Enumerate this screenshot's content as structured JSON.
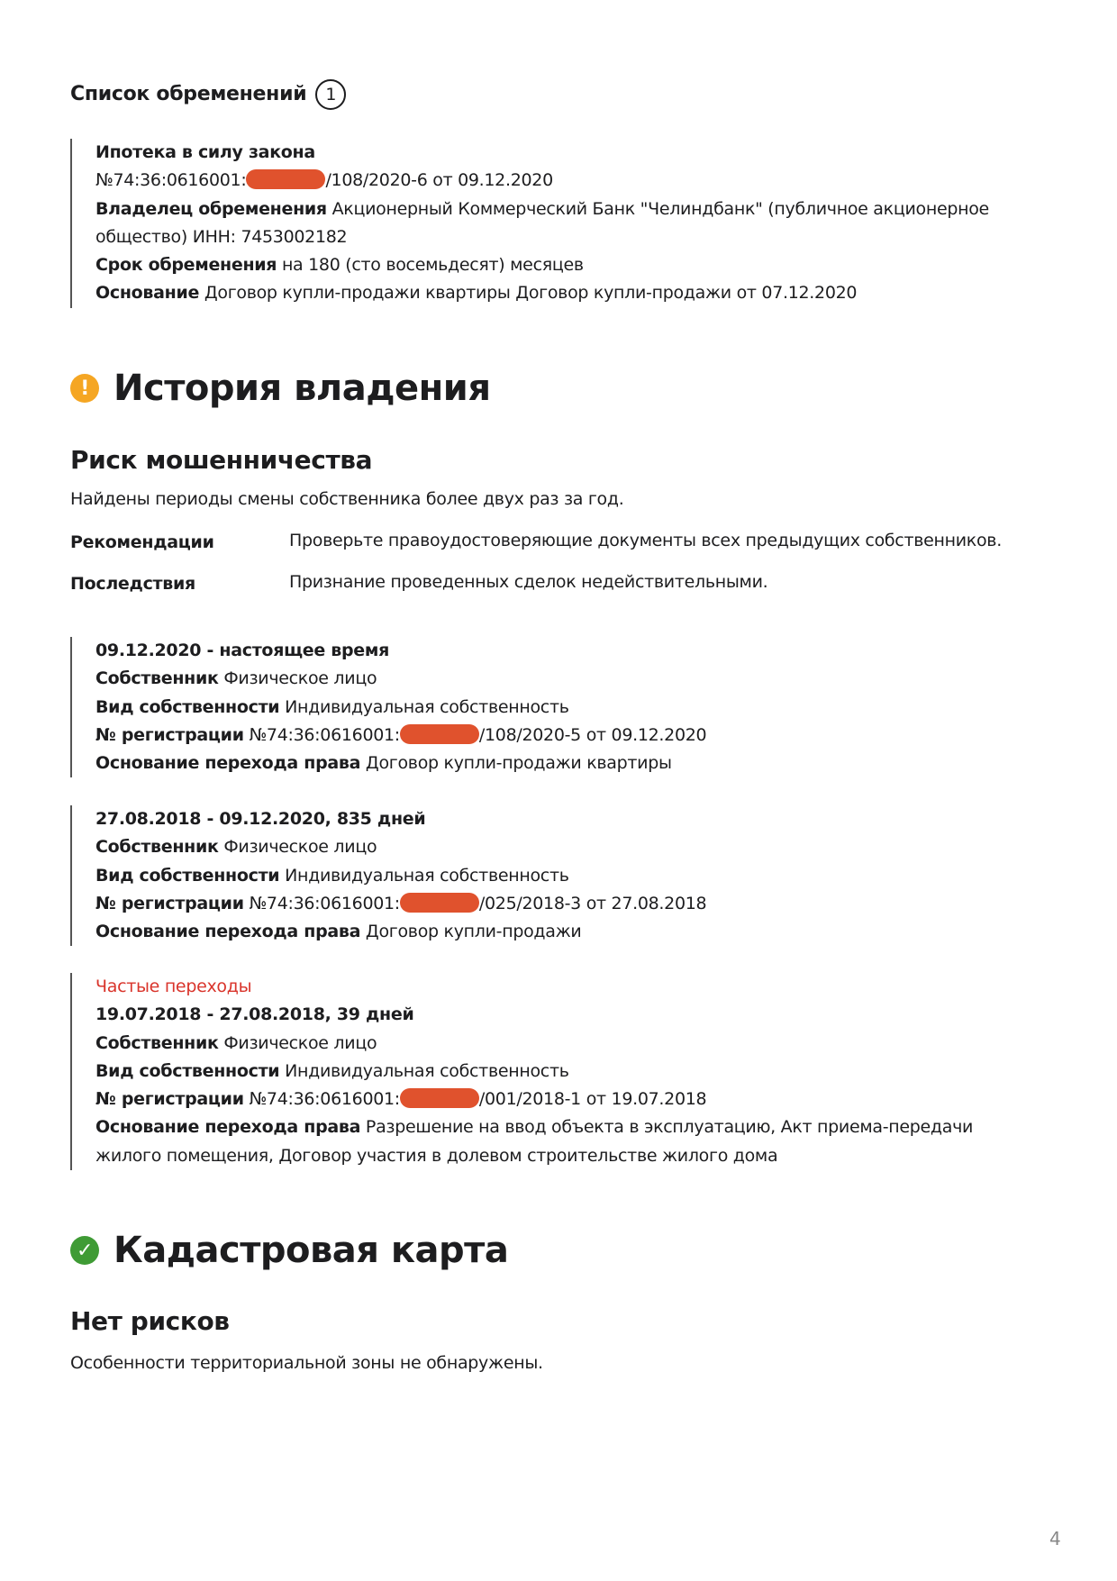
{
  "encumbrances": {
    "title": "Список обременений",
    "count": "1",
    "items": [
      {
        "type": "Ипотека в силу закона",
        "number_prefix": "№74:36:0616001:",
        "number_suffix": "/108/2020-6 от 09.12.2020",
        "owner_label": "Владелец обременения",
        "owner_value": "Акционерный Коммерческий Банк \"Челиндбанк\" (публичное акционерное общество) ИНН: 7453002182",
        "term_label": "Срок обременения",
        "term_value": "на 180 (сто восемьдесят) месяцев",
        "basis_label": "Основание",
        "basis_value": "Договор купли-продажи квартиры Договор купли-продажи от 07.12.2020"
      }
    ]
  },
  "history": {
    "title": "История владения",
    "status_icon": "warning-icon",
    "status_color": "#f5a623",
    "risk_title": "Риск мошенничества",
    "risk_text": "Найдены периоды смены собственника более двух раз за год.",
    "recommendations_label": "Рекомендации",
    "recommendations_value": "Проверьте правоудостоверяющие документы всех предыдущих собственников.",
    "consequences_label": "Последствия",
    "consequences_value": "Признание проведенных сделок недействительными.",
    "periods": [
      {
        "flag": "",
        "period": "09.12.2020 - настоящее время",
        "owner_label": "Собственник",
        "owner_value": "Физическое лицо",
        "kind_label": "Вид собственности",
        "kind_value": "Индивидуальная собственность",
        "reg_label": "№ регистрации",
        "reg_prefix": "№74:36:0616001:",
        "reg_suffix": "/108/2020-5 от 09.12.2020",
        "basis_label": "Основание перехода права",
        "basis_value": "Договор купли-продажи квартиры"
      },
      {
        "flag": "",
        "period": "27.08.2018 - 09.12.2020, 835 дней",
        "owner_label": "Собственник",
        "owner_value": "Физическое лицо",
        "kind_label": "Вид собственности",
        "kind_value": "Индивидуальная собственность",
        "reg_label": "№ регистрации",
        "reg_prefix": "№74:36:0616001:",
        "reg_suffix": "/025/2018-3 от 27.08.2018",
        "basis_label": "Основание перехода права",
        "basis_value": "Договор купли-продажи"
      },
      {
        "flag": "Частые переходы",
        "period": "19.07.2018 - 27.08.2018, 39 дней",
        "owner_label": "Собственник",
        "owner_value": "Физическое лицо",
        "kind_label": "Вид собственности",
        "kind_value": "Индивидуальная собственность",
        "reg_label": "№ регистрации",
        "reg_prefix": "№74:36:0616001:",
        "reg_suffix": "/001/2018-1 от 19.07.2018",
        "basis_label": "Основание перехода права",
        "basis_value": "Разрешение на ввод объекта в эксплуатацию, Акт приема-передачи жилого помещения, Договор участия в долевом строительстве жилого дома"
      }
    ]
  },
  "cadastral": {
    "title": "Кадастровая карта",
    "status_icon": "check-icon",
    "status_color": "#3f9b35",
    "risk_title": "Нет рисков",
    "text": "Особенности территориальной зоны не обнаружены."
  },
  "redaction_color": "#e0522d",
  "page_number": "4"
}
